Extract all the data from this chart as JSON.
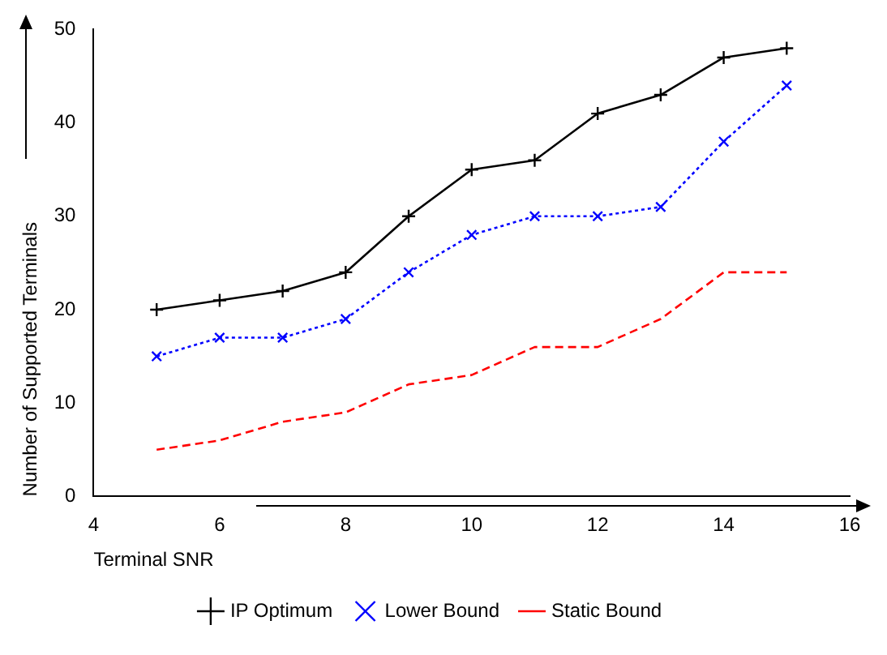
{
  "chart_data": {
    "type": "line",
    "xlabel": "Terminal SNR",
    "ylabel": "Number of Supported Terminals",
    "x": [
      5,
      6,
      7,
      8,
      9,
      10,
      11,
      12,
      13,
      14,
      15
    ],
    "series": [
      {
        "name": "IP Optimum",
        "color": "#000000",
        "marker": "cross",
        "line_style": "solid",
        "values": [
          20,
          21,
          22,
          24,
          30,
          35,
          36,
          41,
          43,
          47,
          48
        ]
      },
      {
        "name": "Lower Bound",
        "color": "#0000ff",
        "marker": "x",
        "line_style": "dotted",
        "values": [
          15,
          17,
          17,
          19,
          24,
          28,
          30,
          30,
          31,
          38,
          44
        ]
      },
      {
        "name": "Static Bound",
        "color": "#ff0000",
        "marker": "none",
        "line_style": "dashed",
        "values": [
          5,
          6,
          8,
          9,
          12,
          13,
          16,
          16,
          19,
          24,
          24
        ]
      }
    ],
    "xlim": [
      4,
      16
    ],
    "xticks": [
      4,
      6,
      8,
      10,
      12,
      14,
      16
    ],
    "ylim": [
      0,
      50
    ],
    "yticks": [
      0,
      10,
      20,
      30,
      40,
      50
    ],
    "grid": false,
    "legend": "bottom"
  }
}
